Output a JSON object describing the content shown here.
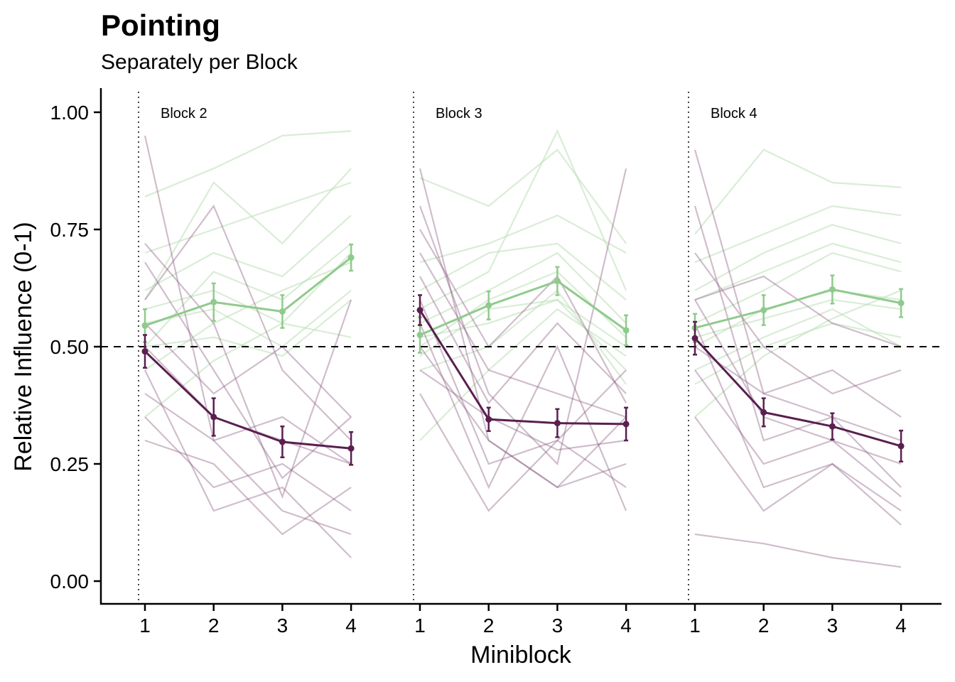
{
  "chart_data": {
    "type": "line",
    "title": "Pointing",
    "subtitle": "Separately per Block",
    "xlabel": "Miniblock",
    "ylabel": "Relative Influence (0-1)",
    "ylim": [
      -0.05,
      1.05
    ],
    "yticks": [
      "0.00",
      "0.25",
      "0.50",
      "0.75",
      "1.00"
    ],
    "reference_line": 0.5,
    "colors": {
      "green": "#8fcb8c",
      "purple": "#5a1f4f",
      "green_faint": "#b9deb4",
      "purple_faint": "#8a5a80"
    },
    "panels": [
      {
        "label": "Block 2",
        "x": [
          1,
          2,
          3,
          4
        ],
        "series": [
          {
            "color": "green",
            "values": [
              0.545,
              0.595,
              0.575,
              0.69
            ],
            "errors": [
              0.035,
              0.04,
              0.035,
              0.028
            ]
          },
          {
            "color": "purple",
            "values": [
              0.49,
              0.35,
              0.297,
              0.283
            ],
            "errors": [
              0.035,
              0.04,
              0.033,
              0.035
            ]
          }
        ]
      },
      {
        "label": "Block 3",
        "x": [
          1,
          2,
          3,
          4
        ],
        "series": [
          {
            "color": "green",
            "values": [
              0.525,
              0.588,
              0.64,
              0.535
            ],
            "errors": [
              0.038,
              0.03,
              0.03,
              0.032
            ]
          },
          {
            "color": "purple",
            "values": [
              0.578,
              0.345,
              0.337,
              0.335
            ],
            "errors": [
              0.032,
              0.025,
              0.03,
              0.035
            ]
          }
        ]
      },
      {
        "label": "Block 4",
        "x": [
          1,
          2,
          3,
          4
        ],
        "series": [
          {
            "color": "green",
            "values": [
              0.54,
              0.578,
              0.622,
              0.593
            ],
            "errors": [
              0.03,
              0.032,
              0.03,
              0.03
            ]
          },
          {
            "color": "purple",
            "values": [
              0.518,
              0.36,
              0.33,
              0.288
            ],
            "errors": [
              0.035,
              0.03,
              0.028,
              0.033
            ]
          }
        ]
      }
    ],
    "individual_lines": {
      "green": [
        [
          [
            0.82,
            0.88,
            0.95,
            0.96
          ],
          [
            0.58,
            0.62,
            0.55,
            0.7
          ],
          [
            0.5,
            0.66,
            0.6,
            0.72
          ],
          [
            0.55,
            0.58,
            0.5,
            0.62
          ],
          [
            0.62,
            0.7,
            0.65,
            0.78
          ],
          [
            0.45,
            0.55,
            0.62,
            0.68
          ],
          [
            0.7,
            0.75,
            0.8,
            0.85
          ],
          [
            0.5,
            0.52,
            0.48,
            0.6
          ],
          [
            0.35,
            0.47,
            0.55,
            0.52
          ],
          [
            0.6,
            0.85,
            0.72,
            0.88
          ]
        ],
        [
          [
            0.86,
            0.8,
            0.92,
            0.72
          ],
          [
            0.5,
            0.6,
            0.66,
            0.52
          ],
          [
            0.62,
            0.7,
            0.72,
            0.6
          ],
          [
            0.48,
            0.58,
            0.6,
            0.45
          ],
          [
            0.55,
            0.62,
            0.7,
            0.55
          ],
          [
            0.3,
            0.45,
            0.58,
            0.48
          ],
          [
            0.68,
            0.72,
            0.78,
            0.7
          ],
          [
            0.52,
            0.55,
            0.6,
            0.5
          ],
          [
            0.45,
            0.5,
            0.62,
            0.42
          ],
          [
            0.58,
            0.66,
            0.96,
            0.62
          ]
        ],
        [
          [
            0.74,
            0.92,
            0.85,
            0.84
          ],
          [
            0.5,
            0.58,
            0.62,
            0.6
          ],
          [
            0.55,
            0.62,
            0.7,
            0.66
          ],
          [
            0.45,
            0.52,
            0.58,
            0.5
          ],
          [
            0.6,
            0.66,
            0.72,
            0.68
          ],
          [
            0.35,
            0.48,
            0.56,
            0.62
          ],
          [
            0.68,
            0.74,
            0.8,
            0.78
          ],
          [
            0.52,
            0.56,
            0.6,
            0.58
          ],
          [
            0.42,
            0.5,
            0.55,
            0.52
          ],
          [
            0.62,
            0.7,
            0.76,
            0.72
          ]
        ]
      ],
      "purple": [
        [
          [
            0.95,
            0.3,
            0.15,
            0.1
          ],
          [
            0.5,
            0.35,
            0.3,
            0.25
          ],
          [
            0.68,
            0.45,
            0.22,
            0.35
          ],
          [
            0.35,
            0.2,
            0.25,
            0.15
          ],
          [
            0.6,
            0.8,
            0.45,
            0.3
          ],
          [
            0.45,
            0.15,
            0.2,
            0.05
          ],
          [
            0.3,
            0.25,
            0.1,
            0.2
          ],
          [
            0.55,
            0.4,
            0.5,
            0.35
          ],
          [
            0.72,
            0.55,
            0.18,
            0.6
          ],
          [
            0.4,
            0.3,
            0.35,
            0.25
          ]
        ],
        [
          [
            0.88,
            0.3,
            0.2,
            0.25
          ],
          [
            0.7,
            0.45,
            0.4,
            0.35
          ],
          [
            0.6,
            0.25,
            0.3,
            0.45
          ],
          [
            0.45,
            0.35,
            0.28,
            0.3
          ],
          [
            0.55,
            0.2,
            0.5,
            0.15
          ],
          [
            0.8,
            0.4,
            0.25,
            0.88
          ],
          [
            0.4,
            0.15,
            0.3,
            0.2
          ],
          [
            0.65,
            0.38,
            0.55,
            0.4
          ],
          [
            0.5,
            0.3,
            0.2,
            0.35
          ],
          [
            0.75,
            0.5,
            0.65,
            0.38
          ]
        ],
        [
          [
            0.92,
            0.4,
            0.35,
            0.3
          ],
          [
            0.6,
            0.35,
            0.3,
            0.25
          ],
          [
            0.55,
            0.2,
            0.25,
            0.15
          ],
          [
            0.1,
            0.08,
            0.05,
            0.03
          ],
          [
            0.5,
            0.4,
            0.45,
            0.35
          ],
          [
            0.8,
            0.3,
            0.35,
            0.2
          ],
          [
            0.45,
            0.25,
            0.3,
            0.18
          ],
          [
            0.7,
            0.5,
            0.4,
            0.45
          ],
          [
            0.35,
            0.15,
            0.25,
            0.12
          ],
          [
            0.6,
            0.65,
            0.55,
            0.5
          ]
        ]
      ]
    }
  }
}
